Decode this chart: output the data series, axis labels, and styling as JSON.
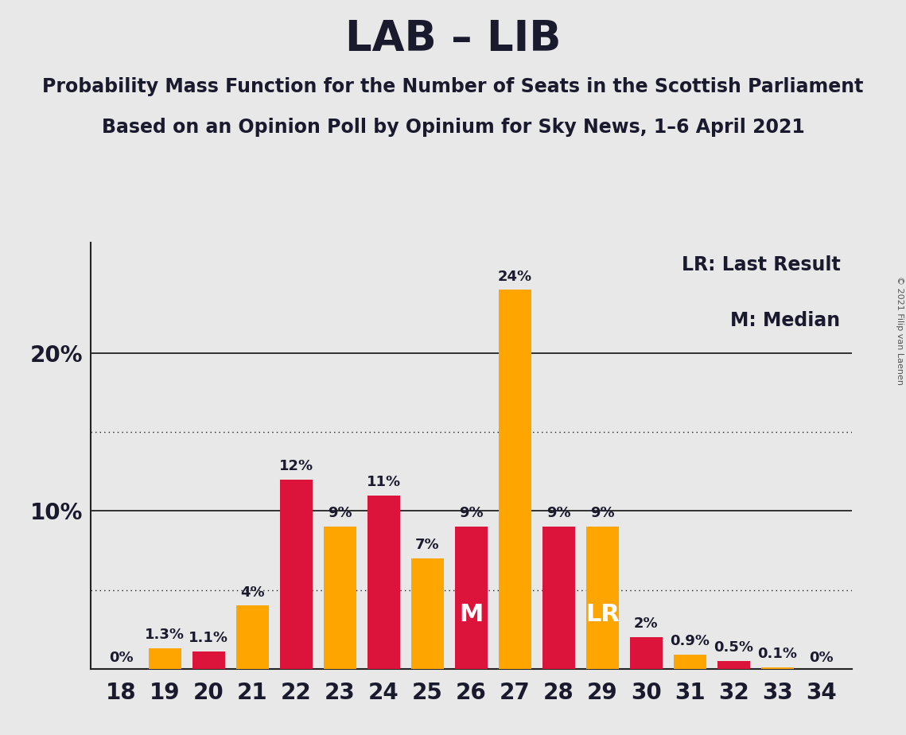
{
  "title": "LAB – LIB",
  "subtitle1": "Probability Mass Function for the Number of Seats in the Scottish Parliament",
  "subtitle2": "Based on an Opinion Poll by Opinium for Sky News, 1–6 April 2021",
  "copyright": "© 2021 Filip van Laenen",
  "legend_lr": "LR: Last Result",
  "legend_m": "M: Median",
  "seats": [
    18,
    19,
    20,
    21,
    22,
    23,
    24,
    25,
    26,
    27,
    28,
    29,
    30,
    31,
    32,
    33,
    34
  ],
  "values": [
    0.0,
    1.3,
    1.1,
    4.0,
    12.0,
    9.0,
    11.0,
    7.0,
    9.0,
    24.0,
    9.0,
    9.0,
    2.0,
    0.9,
    0.5,
    0.1,
    0.0
  ],
  "colors": [
    "#FFA500",
    "#FFA500",
    "#DC143C",
    "#FFA500",
    "#DC143C",
    "#FFA500",
    "#DC143C",
    "#FFA500",
    "#DC143C",
    "#FFA500",
    "#DC143C",
    "#FFA500",
    "#DC143C",
    "#FFA500",
    "#DC143C",
    "#FFA500",
    "#FFA500"
  ],
  "labels": [
    "0%",
    "1.3%",
    "1.1%",
    "4%",
    "12%",
    "9%",
    "11%",
    "7%",
    "9%",
    "24%",
    "9%",
    "9%",
    "2%",
    "0.9%",
    "0.5%",
    "0.1%",
    "0%"
  ],
  "median_seat": 26,
  "lr_seat": 29,
  "background_color": "#E8E8E8",
  "ylim_max": 27,
  "solid_gridlines": [
    10.0,
    20.0
  ],
  "dotted_gridlines": [
    5.0,
    15.0
  ],
  "title_fontsize": 38,
  "subtitle_fontsize": 17,
  "label_fontsize": 13,
  "axis_fontsize": 20,
  "legend_fontsize": 17,
  "marker_fontsize": 22
}
